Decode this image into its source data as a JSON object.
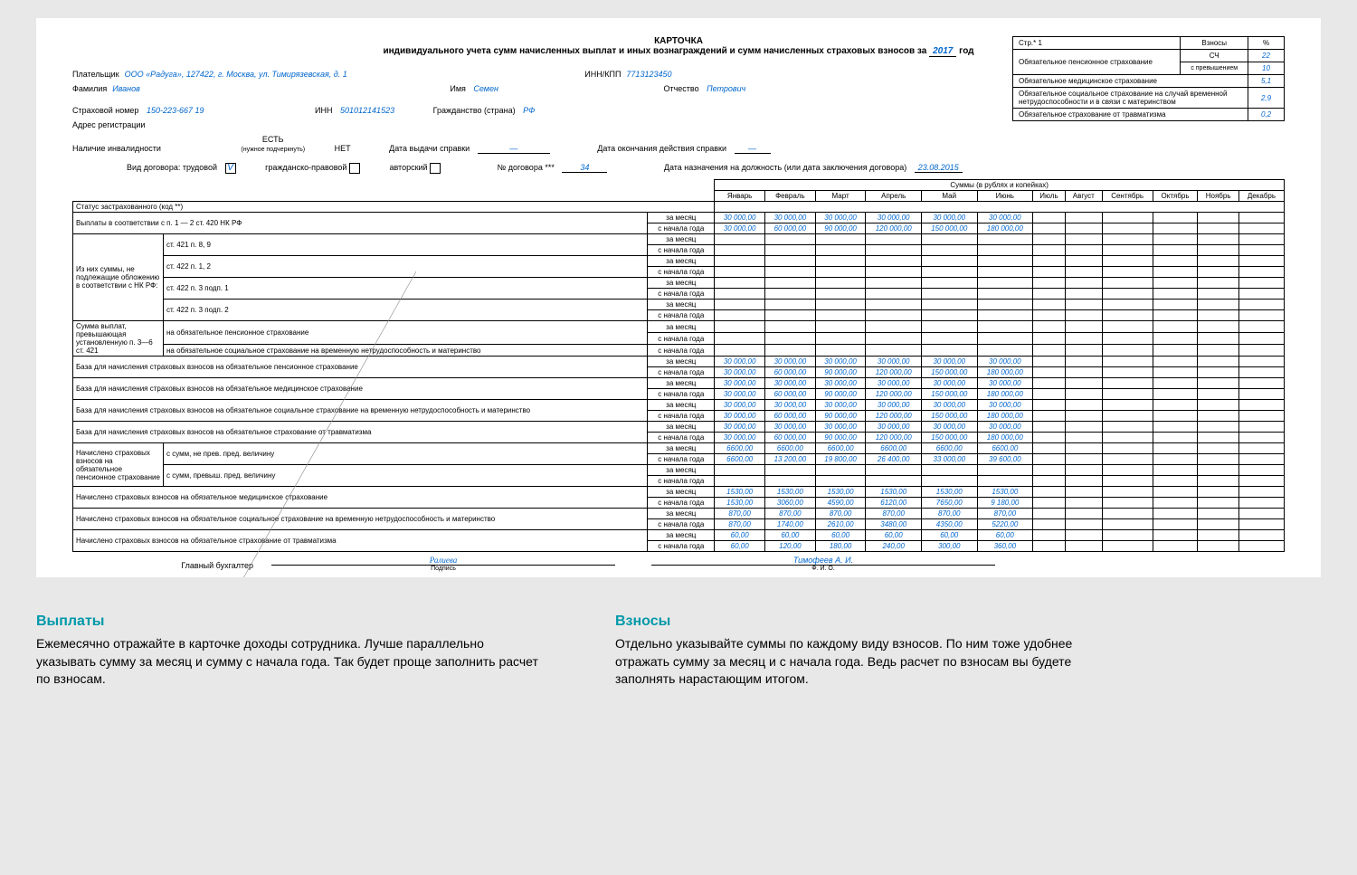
{
  "doc": {
    "title1": "КАРТОЧКА",
    "title2_a": "индивидуального учета сумм начисленных выплат и иных вознаграждений и сумм начисленных страховых взносов за",
    "year": "2017",
    "title2_b": "год",
    "page_lbl": "Стр.* 1",
    "vzn_hdr": "Взносы",
    "pct_hdr": "%",
    "side_rows": [
      {
        "label": "Обязательное пенсионное страхование",
        "sub": "СЧ",
        "pct": "22"
      },
      {
        "label": "",
        "sub": "с превышением",
        "pct": "10"
      },
      {
        "label": "Обязательное медицинское страхование",
        "sub": "",
        "pct": "5,1"
      },
      {
        "label": "Обязательное социальное страхование на случай временной нетрудоспособности и в связи с материнством",
        "sub": "",
        "pct": "2,9"
      },
      {
        "label": "Обязательное страхование от травматизма",
        "sub": "",
        "pct": "0,2"
      }
    ]
  },
  "payer": {
    "lbl": "Плательщик",
    "val": "ООО «Радуга», 127422, г. Москва, ул. Тимирязевская, д. 1",
    "inn_lbl": "ИНН/КПП",
    "inn": "7713123450",
    "fam_lbl": "Фамилия",
    "fam": "Иванов",
    "name_lbl": "Имя",
    "name": "Семен",
    "patr_lbl": "Отчество",
    "patr": "Петрович",
    "snum_lbl": "Страховой номер",
    "snum": "150-223-667 19",
    "pinn_lbl": "ИНН",
    "pinn": "501012141523",
    "cit_lbl": "Гражданство (страна)",
    "cit": "РФ",
    "addr_lbl": "Адрес регистрации",
    "inv_lbl": "Наличие инвалидности",
    "yes": "ЕСТЬ",
    "no": "НЕТ",
    "yes_sub": "(нужное подчеркнуть)",
    "sprav_date_lbl": "Дата выдачи справки",
    "sprav_date": "—",
    "sprav_end_lbl": "Дата окончания действия справки",
    "sprav_end": "—",
    "ctype_lbl": "Вид договора: трудовой",
    "ctype_v": "V",
    "ctype2": "гражданско-правовой",
    "ctype3": "авторский",
    "cnum_lbl": "№ договора ***",
    "cnum": "34",
    "cdate_lbl": "Дата назначения на должность (или дата заключения договора)",
    "cdate": "23.08.2015"
  },
  "tbl": {
    "sum_hdr": "Суммы (в рублях и копейках)",
    "months": [
      "Январь",
      "Февраль",
      "Март",
      "Апрель",
      "Май",
      "Июнь",
      "Июль",
      "Август",
      "Сентябрь",
      "Октябрь",
      "Ноябрь",
      "Декабрь"
    ],
    "m": "за месяц",
    "y": "с начала года",
    "r_status": "Статус застрахованного (код **)",
    "r_pay": "Выплаты в соответствии с п. 1 — 2 ст. 420 НК РФ",
    "r_excl_hdr": "Из них суммы, не подлежащие обложению в соответствии с НК РФ:",
    "r_excl_1": "ст. 421 п. 8, 9",
    "r_excl_2": "ст. 422 п. 1, 2",
    "r_excl_3": "ст. 422 п. 3 подп. 1",
    "r_excl_4": "ст. 422 п. 3 подп. 2",
    "r_over_hdr": "Сумма выплат, превышающая установленную п. 3—6 ст. 421",
    "r_over_1": "на обязательное пенсионное страхование",
    "r_over_2": "на обязательное социальное страхование на временную нетрудоспособность и материнство",
    "r_base_pens": "База для начисления страховых взносов на обязательное пенсионное страхование",
    "r_base_med": "База для начисления страховых взносов на обязательное медицинское страхование",
    "r_base_soc": "База для начисления страховых взносов на обязательное социальное страхование на временную нетрудоспособность и материнство",
    "r_base_trav": "База для начисления страховых взносов на обязательное страхование от травматизма",
    "r_nach_pens_hdr": "Начислено страховых взносов на обязательное пенсионное страхование",
    "r_nach_pens_1": "с сумм, не прев. пред. величину",
    "r_nach_pens_2": "с сумм, превыш. пред. величину",
    "r_nach_med": "Начислено страховых взносов на обязательное медицинское страхование",
    "r_nach_soc": "Начислено страховых взносов на обязательное социальное страхование на временную нетрудоспособность и материнство",
    "r_nach_trav": "Начислено страховых взносов на обязательное страхование от травматизма",
    "v30k": [
      "30 000,00",
      "30 000,00",
      "30 000,00",
      "30 000,00",
      "30 000,00",
      "30 000,00"
    ],
    "v30ky": [
      "30 000,00",
      "60 000,00",
      "90 000,00",
      "120 000,00",
      "150 000,00",
      "180 000,00"
    ],
    "v6600": [
      "6600,00",
      "6600,00",
      "6600,00",
      "6600,00",
      "6600,00",
      "6600,00"
    ],
    "v6600y": [
      "6600,00",
      "13 200,00",
      "19 800,00",
      "26 400,00",
      "33 000,00",
      "39 600,00"
    ],
    "v1530": [
      "1530,00",
      "1530,00",
      "1530,00",
      "1530,00",
      "1530,00",
      "1530,00"
    ],
    "v1530y": [
      "1530,00",
      "3060,00",
      "4590,00",
      "6120,00",
      "7650,00",
      "9 180,00"
    ],
    "v870": [
      "870,00",
      "870,00",
      "870,00",
      "870,00",
      "870,00",
      "870,00"
    ],
    "v870y": [
      "870,00",
      "1740,00",
      "2610,00",
      "3480,00",
      "4350,00",
      "5220,00"
    ],
    "v60": [
      "60,00",
      "60,00",
      "60,00",
      "60,00",
      "60,00",
      "60,00"
    ],
    "v60y": [
      "60,00",
      "120,00",
      "180,00",
      "240,00",
      "300,00",
      "360,00"
    ]
  },
  "sign": {
    "glav": "Главный бухгалтер",
    "sig_img": "Ралиева",
    "sig_lbl": "Подпись",
    "fio": "Тимофеев А. И.",
    "fio_lbl": "Ф. И. О."
  },
  "notes": {
    "n1_h": "Выплаты",
    "n1_t": "Ежемесячно отражайте в карточке доходы сотрудника. Лучше параллельно указывать сумму за месяц и сумму с начала года. Так будет проще заполнить расчет по взносам.",
    "n2_h": "Взносы",
    "n2_t": "Отдельно указывайте суммы по каждому виду взносов. По ним тоже удобнее отражать сумму за месяц и с начала года. Ведь расчет по взносам вы будете заполнять нарастающим итогом."
  }
}
